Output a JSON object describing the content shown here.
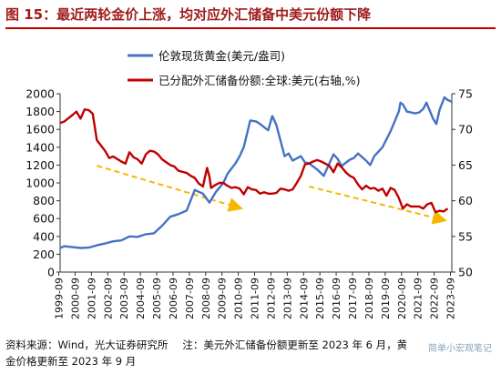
{
  "header": {
    "title": "图 15：最近两轮金价上涨，均对应外汇储备中美元份额下降"
  },
  "footer": {
    "source": "资料来源：Wind，光大证券研究所",
    "note_line1": "注：美元外汇储备份额更新至 2023 年 6 月，黄",
    "note_line2": "金价格更新至 2023 年 9 月"
  },
  "watermark": "简单小宏观笔记",
  "chart_data": {
    "type": "line",
    "title": "",
    "x": [
      "1999-09",
      "2000-09",
      "2001-09",
      "2002-09",
      "2003-09",
      "2004-09",
      "2005-09",
      "2006-09",
      "2007-09",
      "2008-09",
      "2009-09",
      "2010-09",
      "2011-09",
      "2012-09",
      "2013-09",
      "2014-09",
      "2015-09",
      "2016-09",
      "2017-09",
      "2018-09",
      "2019-09",
      "2020-09",
      "2021-09",
      "2022-09",
      "2023-09"
    ],
    "xlabel": "",
    "y_left": {
      "range": [
        0,
        2000
      ],
      "ticks": [
        "0",
        "200",
        "400",
        "600",
        "800",
        "1000",
        "1200",
        "1400",
        "1600",
        "1800",
        "2000"
      ]
    },
    "y_right": {
      "range": [
        50,
        75
      ],
      "ticks": [
        "50",
        "55",
        "60",
        "65",
        "70",
        "75"
      ]
    },
    "colors": {
      "gold": "#4472c4",
      "usd_share": "#c00000",
      "trend": "#f5b800"
    },
    "series": [
      {
        "name": "伦敦现货黄金(美元/盎司)",
        "axis": "left",
        "points": [
          [
            1999.75,
            270
          ],
          [
            2000.0,
            290
          ],
          [
            2000.5,
            280
          ],
          [
            2001.0,
            270
          ],
          [
            2001.5,
            275
          ],
          [
            2002.0,
            300
          ],
          [
            2002.5,
            320
          ],
          [
            2003.0,
            345
          ],
          [
            2003.5,
            355
          ],
          [
            2004.0,
            400
          ],
          [
            2004.5,
            395
          ],
          [
            2005.0,
            425
          ],
          [
            2005.5,
            435
          ],
          [
            2006.0,
            520
          ],
          [
            2006.5,
            620
          ],
          [
            2007.0,
            650
          ],
          [
            2007.5,
            690
          ],
          [
            2008.0,
            920
          ],
          [
            2008.5,
            880
          ],
          [
            2008.9,
            780
          ],
          [
            2009.3,
            900
          ],
          [
            2009.75,
            1000
          ],
          [
            2010.0,
            1100
          ],
          [
            2010.5,
            1220
          ],
          [
            2010.75,
            1300
          ],
          [
            2011.0,
            1400
          ],
          [
            2011.4,
            1700
          ],
          [
            2011.75,
            1690
          ],
          [
            2012.0,
            1660
          ],
          [
            2012.5,
            1590
          ],
          [
            2012.75,
            1750
          ],
          [
            2013.0,
            1650
          ],
          [
            2013.5,
            1300
          ],
          [
            2013.75,
            1330
          ],
          [
            2014.0,
            1250
          ],
          [
            2014.5,
            1300
          ],
          [
            2014.75,
            1230
          ],
          [
            2015.0,
            1220
          ],
          [
            2015.5,
            1150
          ],
          [
            2015.9,
            1080
          ],
          [
            2016.5,
            1320
          ],
          [
            2016.75,
            1270
          ],
          [
            2017.0,
            1190
          ],
          [
            2017.5,
            1260
          ],
          [
            2017.75,
            1280
          ],
          [
            2018.0,
            1330
          ],
          [
            2018.5,
            1250
          ],
          [
            2018.75,
            1200
          ],
          [
            2019.0,
            1300
          ],
          [
            2019.5,
            1400
          ],
          [
            2019.75,
            1490
          ],
          [
            2020.0,
            1580
          ],
          [
            2020.5,
            1800
          ],
          [
            2020.6,
            1900
          ],
          [
            2020.75,
            1880
          ],
          [
            2021.0,
            1800
          ],
          [
            2021.5,
            1780
          ],
          [
            2021.75,
            1790
          ],
          [
            2022.0,
            1830
          ],
          [
            2022.2,
            1900
          ],
          [
            2022.6,
            1720
          ],
          [
            2022.8,
            1660
          ],
          [
            2023.0,
            1820
          ],
          [
            2023.3,
            1960
          ],
          [
            2023.5,
            1930
          ],
          [
            2023.75,
            1910
          ]
        ]
      },
      {
        "name": "已分配外汇储备份额:全球:美元(右轴,%)",
        "axis": "right",
        "points": [
          [
            1999.75,
            70.9
          ],
          [
            2000.0,
            71.1
          ],
          [
            2000.5,
            72.0
          ],
          [
            2000.75,
            72.5
          ],
          [
            2001.0,
            71.5
          ],
          [
            2001.25,
            72.8
          ],
          [
            2001.5,
            72.7
          ],
          [
            2001.75,
            72.2
          ],
          [
            2002.0,
            68.5
          ],
          [
            2002.5,
            67.0
          ],
          [
            2002.75,
            66.0
          ],
          [
            2003.0,
            66.2
          ],
          [
            2003.5,
            65.5
          ],
          [
            2003.75,
            65.2
          ],
          [
            2004.0,
            66.8
          ],
          [
            2004.25,
            66.1
          ],
          [
            2004.5,
            65.8
          ],
          [
            2004.75,
            65.2
          ],
          [
            2005.0,
            66.5
          ],
          [
            2005.25,
            67.0
          ],
          [
            2005.5,
            66.9
          ],
          [
            2005.75,
            66.5
          ],
          [
            2006.0,
            65.8
          ],
          [
            2006.5,
            65.0
          ],
          [
            2006.75,
            64.8
          ],
          [
            2007.0,
            64.2
          ],
          [
            2007.5,
            63.9
          ],
          [
            2007.75,
            63.5
          ],
          [
            2008.0,
            63.2
          ],
          [
            2008.25,
            62.4
          ],
          [
            2008.5,
            62.0
          ],
          [
            2008.75,
            64.6
          ],
          [
            2008.9,
            63.4
          ],
          [
            2009.0,
            61.8
          ],
          [
            2009.25,
            62.2
          ],
          [
            2009.5,
            62.5
          ],
          [
            2009.75,
            62.5
          ],
          [
            2010.0,
            62.1
          ],
          [
            2010.25,
            61.8
          ],
          [
            2010.5,
            61.9
          ],
          [
            2010.75,
            61.7
          ],
          [
            2011.0,
            60.9
          ],
          [
            2011.25,
            61.9
          ],
          [
            2011.5,
            61.6
          ],
          [
            2011.75,
            61.5
          ],
          [
            2012.0,
            61.0
          ],
          [
            2012.25,
            61.2
          ],
          [
            2012.5,
            61.0
          ],
          [
            2012.75,
            61.0
          ],
          [
            2013.0,
            61.1
          ],
          [
            2013.25,
            61.7
          ],
          [
            2013.5,
            61.6
          ],
          [
            2013.75,
            61.4
          ],
          [
            2014.0,
            61.6
          ],
          [
            2014.25,
            62.5
          ],
          [
            2014.5,
            63.5
          ],
          [
            2014.75,
            65.1
          ],
          [
            2015.0,
            65.2
          ],
          [
            2015.25,
            65.5
          ],
          [
            2015.5,
            65.7
          ],
          [
            2015.75,
            65.5
          ],
          [
            2016.0,
            65.2
          ],
          [
            2016.25,
            64.9
          ],
          [
            2016.5,
            64.0
          ],
          [
            2016.75,
            65.2
          ],
          [
            2017.0,
            64.7
          ],
          [
            2017.25,
            64.0
          ],
          [
            2017.5,
            63.5
          ],
          [
            2017.75,
            63.2
          ],
          [
            2018.0,
            62.3
          ],
          [
            2018.25,
            61.6
          ],
          [
            2018.5,
            62.1
          ],
          [
            2018.75,
            61.7
          ],
          [
            2019.0,
            61.8
          ],
          [
            2019.25,
            61.4
          ],
          [
            2019.5,
            61.7
          ],
          [
            2019.75,
            60.7
          ],
          [
            2020.0,
            61.8
          ],
          [
            2020.25,
            61.5
          ],
          [
            2020.5,
            60.4
          ],
          [
            2020.75,
            58.9
          ],
          [
            2021.0,
            59.5
          ],
          [
            2021.25,
            59.2
          ],
          [
            2021.5,
            59.2
          ],
          [
            2021.75,
            59.2
          ],
          [
            2022.0,
            58.9
          ],
          [
            2022.25,
            59.5
          ],
          [
            2022.5,
            59.7
          ],
          [
            2022.75,
            58.4
          ],
          [
            2023.0,
            58.6
          ],
          [
            2023.25,
            58.5
          ],
          [
            2023.5,
            58.9
          ]
        ]
      }
    ],
    "trend_arrows": [
      {
        "from": [
          2002.0,
          64.9
        ],
        "to": [
          2010.75,
          59.0
        ]
      },
      {
        "from": [
          2015.0,
          62.0
        ],
        "to": [
          2023.25,
          57.3
        ]
      }
    ],
    "legend": "top-center"
  }
}
